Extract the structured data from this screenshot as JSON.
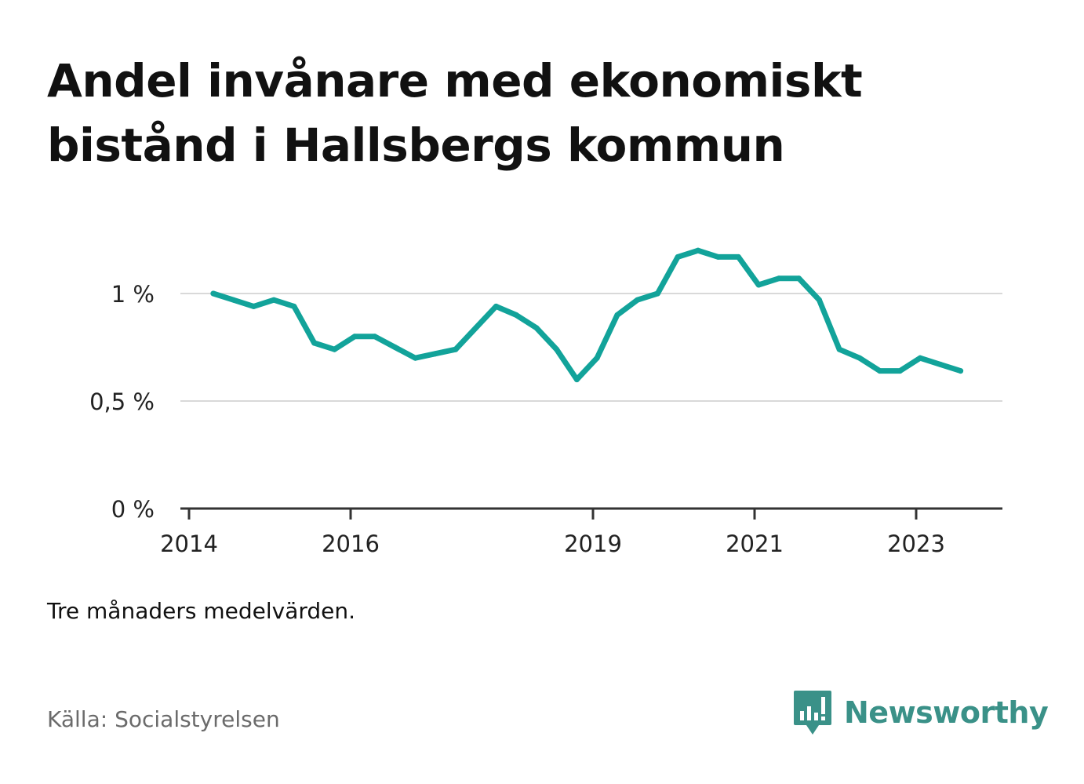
{
  "title": "Andel invånare med ekonomiskt bistånd i Hallsbergs kommun",
  "note": "Tre månaders medelvärden.",
  "source": "Källa: Socialstyrelsen",
  "brand": {
    "name": "Newsworthy",
    "icon": "newsworthy-logo-icon",
    "color": "#3a9188"
  },
  "colors": {
    "line": "#12a39a",
    "grid": "#d9d9d9",
    "axis": "#333333"
  },
  "chart_data": {
    "type": "line",
    "title": "Andel invånare med ekonomiskt bistånd i Hallsbergs kommun",
    "xlabel": "",
    "ylabel": "",
    "xlim": [
      2014.0,
      2024.0
    ],
    "ylim": [
      0,
      1.27
    ],
    "y_ticks": [
      {
        "value": 0,
        "label": "0 %"
      },
      {
        "value": 0.5,
        "label": "0,5 %"
      },
      {
        "value": 1,
        "label": "1 %"
      }
    ],
    "x_ticks": [
      {
        "value": 2014.0,
        "label": "2014"
      },
      {
        "value": 2016.0,
        "label": "2016"
      },
      {
        "value": 2019.0,
        "label": "2019"
      },
      {
        "value": 2021.0,
        "label": "2021"
      },
      {
        "value": 2023.0,
        "label": "2023"
      }
    ],
    "grid": true,
    "series": [
      {
        "x": [
          2014.3,
          2014.55,
          2014.8,
          2015.05,
          2015.3,
          2015.55,
          2015.8,
          2016.05,
          2016.3,
          2016.55,
          2016.8,
          2017.05,
          2017.3,
          2017.55,
          2017.8,
          2018.05,
          2018.3,
          2018.55,
          2018.8,
          2019.05,
          2019.3,
          2019.55,
          2019.8,
          2020.05,
          2020.3,
          2020.55,
          2020.8,
          2021.05,
          2021.3,
          2021.55,
          2021.8,
          2022.05,
          2022.3,
          2022.55,
          2022.8,
          2023.05,
          2023.3,
          2023.55
        ],
        "values": [
          1.0,
          0.97,
          0.94,
          0.97,
          0.94,
          0.77,
          0.74,
          0.8,
          0.8,
          0.75,
          0.7,
          0.72,
          0.74,
          0.84,
          0.94,
          0.9,
          0.84,
          0.74,
          0.6,
          0.7,
          0.9,
          0.97,
          1.0,
          1.17,
          1.2,
          1.17,
          1.17,
          1.04,
          1.07,
          1.07,
          0.97,
          0.74,
          0.7,
          0.64,
          0.64,
          0.7,
          0.67,
          0.64
        ]
      }
    ]
  }
}
